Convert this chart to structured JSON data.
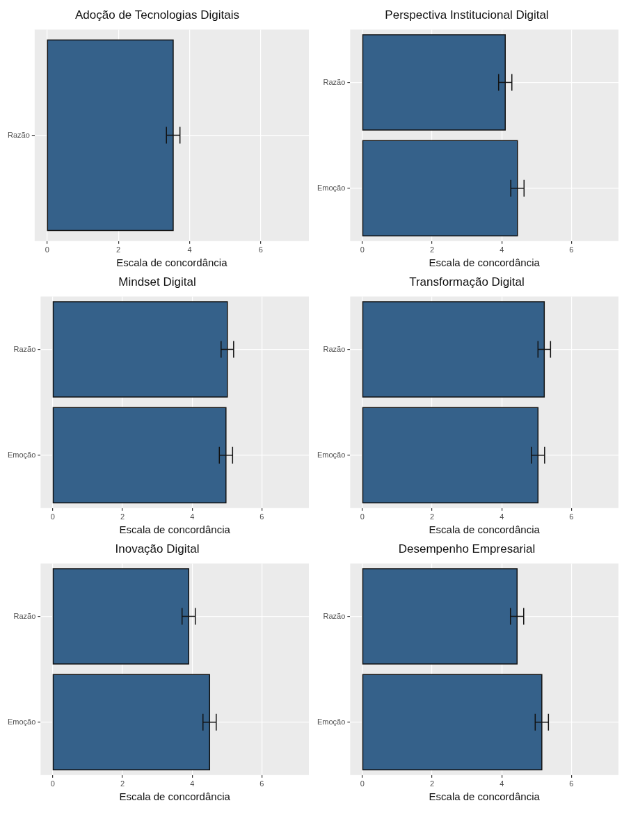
{
  "chart_data": [
    {
      "type": "bar",
      "orientation": "horizontal",
      "title": "Adoção de Tecnologias Digitais",
      "xlabel": "Escala de concordância",
      "categories": [
        "Razão"
      ],
      "values": [
        3.54
      ],
      "errors": [
        0.19
      ],
      "color": "#35618a",
      "xlim": [
        -0.35,
        7.35
      ],
      "xticks": [
        0,
        2,
        4,
        6
      ],
      "grid": true
    },
    {
      "type": "bar",
      "orientation": "horizontal",
      "title": "Perspectiva Institucional Digital",
      "xlabel": "Escala de concordância",
      "categories": [
        "Razão",
        "Emoção"
      ],
      "values": [
        4.1,
        4.45
      ],
      "errors": [
        0.19,
        0.19
      ],
      "color": "#35618a",
      "xlim": [
        -0.35,
        7.35
      ],
      "xticks": [
        0,
        2,
        4,
        6
      ],
      "grid": true
    },
    {
      "type": "bar",
      "orientation": "horizontal",
      "title": "Mindset Digital",
      "xlabel": "Escala de concordância",
      "categories": [
        "Razão",
        "Emoção"
      ],
      "values": [
        5.01,
        4.97
      ],
      "errors": [
        0.18,
        0.19
      ],
      "color": "#35618a",
      "xlim": [
        -0.35,
        7.35
      ],
      "xticks": [
        0,
        2,
        4,
        6
      ],
      "grid": true
    },
    {
      "type": "bar",
      "orientation": "horizontal",
      "title": "Transformação Digital",
      "xlabel": "Escala de concordância",
      "categories": [
        "Razão",
        "Emoção"
      ],
      "values": [
        5.22,
        5.04
      ],
      "errors": [
        0.18,
        0.19
      ],
      "color": "#35618a",
      "xlim": [
        -0.35,
        7.35
      ],
      "xticks": [
        0,
        2,
        4,
        6
      ],
      "grid": true
    },
    {
      "type": "bar",
      "orientation": "horizontal",
      "title": "Inovação Digital",
      "xlabel": "Escala de concordância",
      "categories": [
        "Razão",
        "Emoção"
      ],
      "values": [
        3.9,
        4.5
      ],
      "errors": [
        0.19,
        0.19
      ],
      "color": "#35618a",
      "xlim": [
        -0.35,
        7.35
      ],
      "xticks": [
        0,
        2,
        4,
        6
      ],
      "grid": true
    },
    {
      "type": "bar",
      "orientation": "horizontal",
      "title": "Desempenho Empresarial",
      "xlabel": "Escala de concordância",
      "categories": [
        "Razão",
        "Emoção"
      ],
      "values": [
        4.44,
        5.15
      ],
      "errors": [
        0.19,
        0.19
      ],
      "color": "#35618a",
      "xlim": [
        -0.35,
        7.35
      ],
      "xticks": [
        0,
        2,
        4,
        6
      ],
      "grid": true
    }
  ]
}
